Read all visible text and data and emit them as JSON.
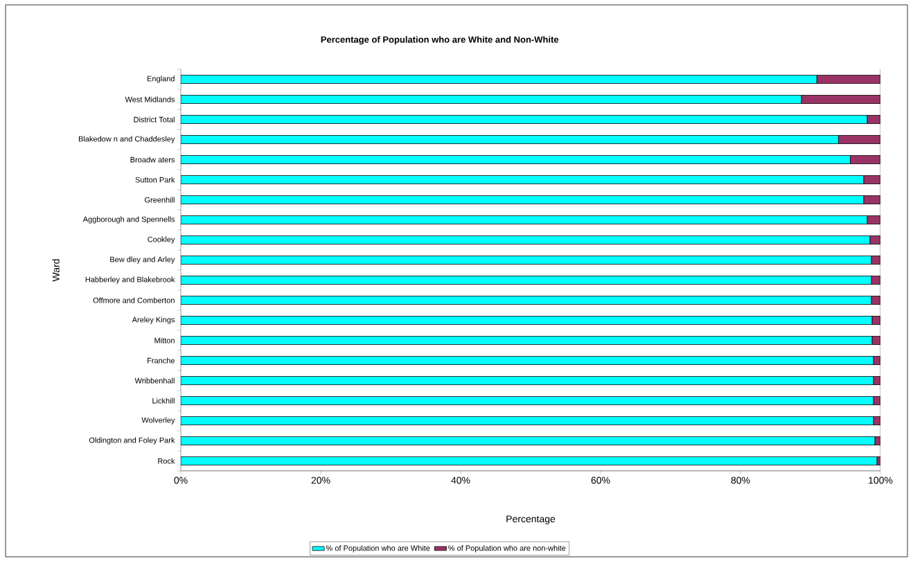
{
  "chart_data": {
    "type": "bar",
    "orientation": "horizontal",
    "stacked": true,
    "title": "Percentage of Population who are White and Non-White",
    "xlabel": "Percentage",
    "ylabel": "Ward",
    "categories": [
      "England",
      "West Midlands",
      "District Total",
      "Blakedow n and Chaddesley",
      "Broadw aters",
      "Sutton Park",
      "Greenhill",
      "Aggborough and Spennells",
      "Cookley",
      "Bew dley and Arley",
      "Habberley and Blakebrook",
      "Offmore and Comberton",
      "Areley Kings",
      "Mitton",
      "Franche",
      "Wribbenhall",
      "Lickhill",
      "Wolverley",
      "Oldington and Foley Park",
      "Rock"
    ],
    "series": [
      {
        "name": "% of Population who are White",
        "color": "#00ffff",
        "values": [
          90.9,
          88.7,
          98.1,
          94.0,
          95.7,
          97.6,
          97.6,
          98.1,
          98.5,
          98.7,
          98.7,
          98.7,
          98.8,
          98.8,
          99.0,
          99.0,
          99.0,
          99.0,
          99.2,
          99.5
        ]
      },
      {
        "name": "% of Population who are non-white",
        "color": "#993366",
        "values": [
          9.1,
          11.3,
          1.9,
          6.0,
          4.3,
          2.4,
          2.4,
          1.9,
          1.5,
          1.3,
          1.3,
          1.3,
          1.2,
          1.2,
          1.0,
          1.0,
          1.0,
          1.0,
          0.8,
          0.5
        ]
      }
    ],
    "xlim": [
      0,
      100
    ],
    "xticks": [
      {
        "value": 0,
        "label": "0%"
      },
      {
        "value": 20,
        "label": "20%"
      },
      {
        "value": 40,
        "label": "40%"
      },
      {
        "value": 60,
        "label": "60%"
      },
      {
        "value": 80,
        "label": "80%"
      },
      {
        "value": 100,
        "label": "100%"
      }
    ],
    "legend": "bottom"
  }
}
